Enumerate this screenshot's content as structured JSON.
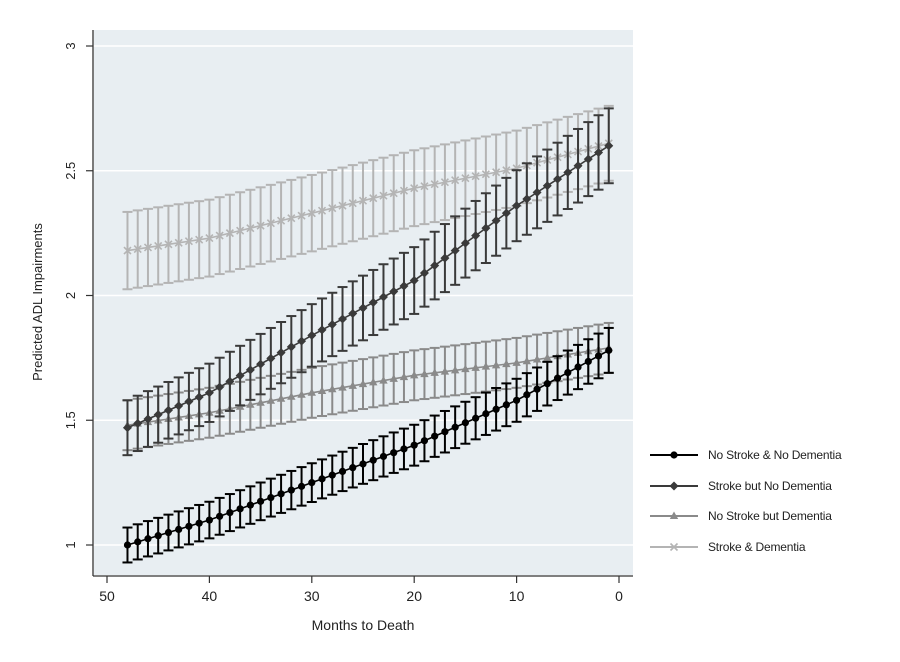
{
  "chart_data": {
    "type": "line",
    "title": "",
    "xlabel": "Months to Death",
    "ylabel": "Predicted ADL Impairments",
    "xlim": [
      51,
      -1
    ],
    "ylim": [
      0.93,
      3.07
    ],
    "x_ticks": [
      50,
      40,
      30,
      20,
      10,
      0
    ],
    "y_ticks": [
      1,
      1.5,
      2,
      2.5,
      3
    ],
    "y_tick_labels": [
      "1",
      "1.5",
      "2",
      "2.5",
      "3"
    ],
    "x_tick_labels": [
      "50",
      "40",
      "30",
      "20",
      "10",
      "0"
    ],
    "x_reversed": true,
    "grid": "horizontal",
    "legend_position": "right",
    "error_bars": true,
    "x": [
      48,
      47,
      46,
      45,
      44,
      43,
      42,
      41,
      40,
      39,
      38,
      37,
      36,
      35,
      34,
      33,
      32,
      31,
      30,
      29,
      28,
      27,
      26,
      25,
      24,
      23,
      22,
      21,
      20,
      19,
      18,
      17,
      16,
      15,
      14,
      13,
      12,
      11,
      10,
      9,
      8,
      7,
      6,
      5,
      4,
      3,
      2,
      1
    ],
    "anchors_note": "values linearly interpolated between read anchors at months 48,40,30,20,10,1",
    "series": [
      {
        "name": "No Stroke & No Dementia",
        "color": "#000000",
        "marker": "circle",
        "anchors": {
          "48": 1.0,
          "40": 1.1,
          "30": 1.25,
          "20": 1.4,
          "10": 1.58,
          "1": 1.78
        },
        "ci_halfwidth": {
          "48": 0.07,
          "1": 0.09
        }
      },
      {
        "name": "Stroke but No Dementia",
        "color": "#3a3a3a",
        "marker": "diamond",
        "anchors": {
          "48": 1.47,
          "40": 1.61,
          "30": 1.84,
          "20": 2.06,
          "10": 2.36,
          "1": 2.6
        },
        "ci_halfwidth": {
          "48": 0.11,
          "1": 0.15
        }
      },
      {
        "name": "No Stroke but Dementia",
        "color": "#8a8a8a",
        "marker": "triangle",
        "anchors": {
          "48": 1.48,
          "40": 1.53,
          "30": 1.61,
          "20": 1.68,
          "10": 1.73,
          "1": 1.79
        },
        "ci_halfwidth": {
          "48": 0.1,
          "1": 0.1
        }
      },
      {
        "name": "Stroke & Dementia",
        "color": "#b4b4b4",
        "marker": "x",
        "anchors": {
          "48": 2.18,
          "40": 2.23,
          "30": 2.33,
          "20": 2.43,
          "10": 2.51,
          "1": 2.61
        },
        "ci_halfwidth": {
          "48": 0.155,
          "1": 0.15
        }
      }
    ]
  },
  "legend": {
    "items": [
      {
        "label": "No Stroke & No Dementia",
        "color": "#000000",
        "marker": "circle-icon"
      },
      {
        "label": "Stroke but No Dementia",
        "color": "#3a3a3a",
        "marker": "diamond-icon"
      },
      {
        "label": "No Stroke but Dementia",
        "color": "#8a8a8a",
        "marker": "triangle-icon"
      },
      {
        "label": "Stroke & Dementia",
        "color": "#b4b4b4",
        "marker": "x-icon"
      }
    ]
  },
  "style": {
    "plot_background": "#e8eef2",
    "gridline_color": "#ffffff",
    "axis_color": "#333333"
  }
}
